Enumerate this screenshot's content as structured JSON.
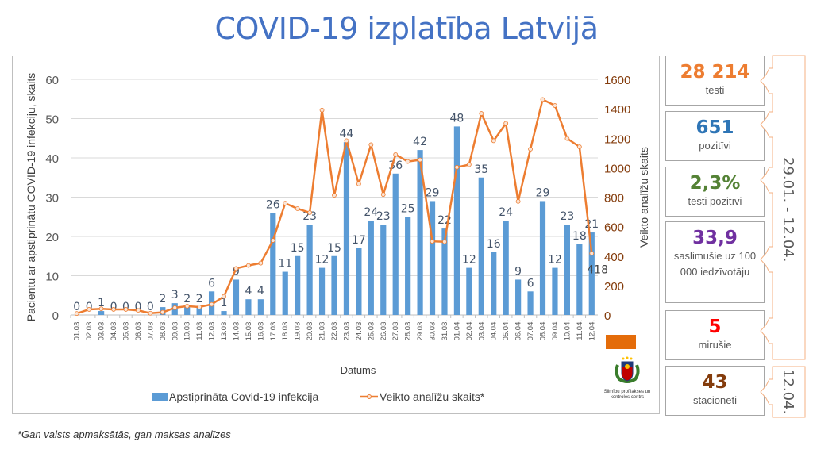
{
  "title": "COVID-19 izplatība Latvijā",
  "footnote": "*Gan valsts apmaksātās, gan maksas analīzes",
  "colors": {
    "bars": "#5b9bd5",
    "line": "#ed7d31",
    "title": "#4472c4",
    "right_axis": "#843c0c"
  },
  "stats": [
    {
      "value": "28 214",
      "label": "testi",
      "color": "#ed7d31"
    },
    {
      "value": "651",
      "label": "pozitīvi",
      "color": "#2e75b6"
    },
    {
      "value": "2,3%",
      "label": "testi pozitīvi",
      "color": "#548235"
    },
    {
      "value": "33,9",
      "label": "saslimušie uz 100 000 iedzīvotāju",
      "color": "#7030a0"
    },
    {
      "value": "5",
      "label": "mirušie",
      "color": "#ff0000"
    },
    {
      "value": "43",
      "label": "stacionēti",
      "color": "#843c0c"
    }
  ],
  "periods": {
    "cumulative": "29.01. - 12.04.",
    "current": "12.04."
  },
  "logo": {
    "text": "Slimību profilakses un kontroles centrs"
  },
  "chart_data": {
    "type": "bar+line",
    "xlabel": "Datums",
    "ylabel_left": "Pacientu ar apstiprinātu COVID-19 infekciju, skaits",
    "ylabel_right": "Veikto analīžu skaits",
    "ylim_left": [
      0,
      60
    ],
    "ylim_right": [
      0,
      1600
    ],
    "yticks_left": [
      0,
      10,
      20,
      30,
      40,
      50,
      60
    ],
    "yticks_right": [
      0,
      200,
      400,
      600,
      800,
      1000,
      1200,
      1400,
      1600
    ],
    "grid": true,
    "legend_position": "bottom",
    "categories": [
      "01.03.",
      "02.03.",
      "03.03.",
      "04.03.",
      "05.03.",
      "06.03.",
      "07.03.",
      "08.03.",
      "09.03.",
      "10.03.",
      "11.03.",
      "12.03.",
      "13.03.",
      "14.03.",
      "15.03.",
      "16.03.",
      "17.03.",
      "18.03.",
      "19.03.",
      "20.03.",
      "21.03.",
      "22.03.",
      "23.03.",
      "24.03.",
      "25.03.",
      "26.03.",
      "27.03.",
      "28.03.",
      "29.03.",
      "30.03.",
      "31.03.",
      "01.04.",
      "02.04.",
      "03.04.",
      "04.04.",
      "05.04.",
      "06.04.",
      "07.04.",
      "08.04.",
      "09.04.",
      "10.04.",
      "11.04.",
      "12.04."
    ],
    "series": [
      {
        "name": "Apstiprināta Covid-19 infekcija",
        "type": "bar",
        "axis": "left",
        "values": [
          0,
          0,
          1,
          0,
          0,
          0,
          0,
          2,
          3,
          2,
          2,
          6,
          1,
          9,
          4,
          4,
          26,
          11,
          15,
          23,
          12,
          15,
          44,
          17,
          24,
          23,
          36,
          25,
          42,
          29,
          22,
          48,
          12,
          35,
          16,
          24,
          9,
          6,
          29,
          12,
          23,
          18,
          21
        ]
      },
      {
        "name": "Veikto analīžu skaits*",
        "type": "line",
        "axis": "right",
        "values": [
          10,
          38,
          42,
          38,
          38,
          31,
          12,
          18,
          49,
          60,
          54,
          72,
          126,
          316,
          336,
          352,
          506,
          759,
          722,
          695,
          1391,
          813,
          1183,
          890,
          1156,
          818,
          1089,
          1042,
          1053,
          500,
          497,
          1003,
          1021,
          1368,
          1183,
          1301,
          771,
          1126,
          1463,
          1422,
          1198,
          1142,
          418
        ],
        "last_label": "418"
      }
    ]
  }
}
